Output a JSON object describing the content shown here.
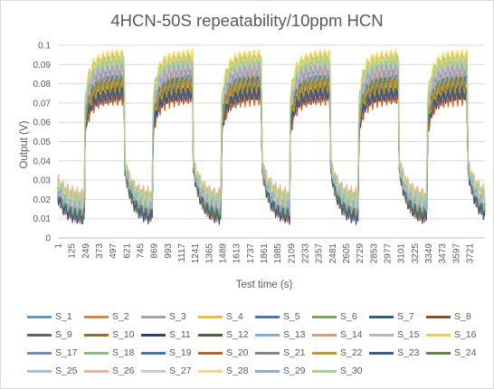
{
  "chart_data": {
    "type": "line",
    "title": "4HCN-50S repeatability/10ppm HCN",
    "xlabel": "Test time (s)",
    "ylabel": "Output (V)",
    "ylim": [
      0,
      0.1
    ],
    "yticks": [
      "0",
      "0.01",
      "0.02",
      "0.03",
      "0.04",
      "0.05",
      "0.06",
      "0.07",
      "0.08",
      "0.09",
      "0.1"
    ],
    "xticks": [
      "1",
      "125",
      "249",
      "373",
      "497",
      "621",
      "745",
      "869",
      "993",
      "1117",
      "1241",
      "1365",
      "1489",
      "1613",
      "1737",
      "1861",
      "1985",
      "2109",
      "2233",
      "2357",
      "2481",
      "2605",
      "2729",
      "2853",
      "2977",
      "3101",
      "3225",
      "3349",
      "3473",
      "3597",
      "3721"
    ],
    "xlim": [
      1,
      3860
    ],
    "grid": true,
    "legend_position": "bottom",
    "cycles": {
      "rise_times": [
        240,
        855,
        1475,
        2095,
        2715,
        3335
      ],
      "fall_times": [
        600,
        1220,
        1840,
        2460,
        3080,
        3700
      ]
    },
    "series": [
      {
        "name": "S_1",
        "color": "#5b9bd5",
        "level": 0.086,
        "baseline": 0.015
      },
      {
        "name": "S_2",
        "color": "#ed7d31",
        "level": 0.075,
        "baseline": 0.014
      },
      {
        "name": "S_3",
        "color": "#a5a5a5",
        "level": 0.088,
        "baseline": 0.016
      },
      {
        "name": "S_4",
        "color": "#ffc000",
        "level": 0.094,
        "baseline": 0.013
      },
      {
        "name": "S_5",
        "color": "#4472c4",
        "level": 0.081,
        "baseline": 0.012
      },
      {
        "name": "S_6",
        "color": "#70ad47",
        "level": 0.091,
        "baseline": 0.017
      },
      {
        "name": "S_7",
        "color": "#255e91",
        "level": 0.074,
        "baseline": 0.011
      },
      {
        "name": "S_8",
        "color": "#9e480e",
        "level": 0.077,
        "baseline": 0.012
      },
      {
        "name": "S_9",
        "color": "#636363",
        "level": 0.079,
        "baseline": 0.013
      },
      {
        "name": "S_10",
        "color": "#997300",
        "level": 0.08,
        "baseline": 0.011
      },
      {
        "name": "S_11",
        "color": "#264478",
        "level": 0.076,
        "baseline": 0.01
      },
      {
        "name": "S_12",
        "color": "#43682b",
        "level": 0.083,
        "baseline": 0.012
      },
      {
        "name": "S_13",
        "color": "#7cafdd",
        "level": 0.087,
        "baseline": 0.017
      },
      {
        "name": "S_14",
        "color": "#f1975a",
        "level": 0.085,
        "baseline": 0.021
      },
      {
        "name": "S_15",
        "color": "#b7b7b7",
        "level": 0.09,
        "baseline": 0.018
      },
      {
        "name": "S_16",
        "color": "#ffcd33",
        "level": 0.093,
        "baseline": 0.016
      },
      {
        "name": "S_17",
        "color": "#698ed0",
        "level": 0.084,
        "baseline": 0.013
      },
      {
        "name": "S_18",
        "color": "#8cc168",
        "level": 0.092,
        "baseline": 0.019
      },
      {
        "name": "S_19",
        "color": "#327dc2",
        "level": 0.078,
        "baseline": 0.012
      },
      {
        "name": "S_20",
        "color": "#d26012",
        "level": 0.073,
        "baseline": 0.011
      },
      {
        "name": "S_21",
        "color": "#848484",
        "level": 0.082,
        "baseline": 0.013
      },
      {
        "name": "S_22",
        "color": "#cc9a00",
        "level": 0.079,
        "baseline": 0.012
      },
      {
        "name": "S_23",
        "color": "#335aa1",
        "level": 0.075,
        "baseline": 0.01
      },
      {
        "name": "S_24",
        "color": "#5a8a39",
        "level": 0.085,
        "baseline": 0.013
      },
      {
        "name": "S_25",
        "color": "#9dc3e6",
        "level": 0.089,
        "baseline": 0.018
      },
      {
        "name": "S_26",
        "color": "#f4b183",
        "level": 0.088,
        "baseline": 0.022
      },
      {
        "name": "S_27",
        "color": "#c9c9c9",
        "level": 0.091,
        "baseline": 0.019
      },
      {
        "name": "S_28",
        "color": "#ffd966",
        "level": 0.095,
        "baseline": 0.017
      },
      {
        "name": "S_29",
        "color": "#8faadc",
        "level": 0.087,
        "baseline": 0.015
      },
      {
        "name": "S_30",
        "color": "#a9d18e",
        "level": 0.093,
        "baseline": 0.02
      }
    ]
  }
}
